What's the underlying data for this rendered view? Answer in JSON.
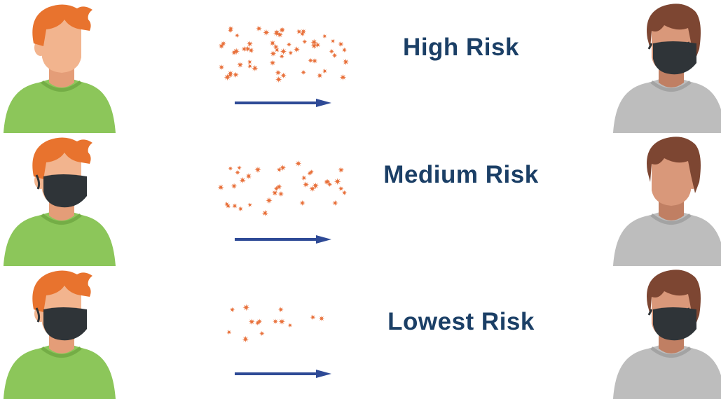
{
  "colors": {
    "risk_text": "#1b3f66",
    "arrow": "#2e4a96",
    "droplet": "#e8703a",
    "source_shirt": "#8cc65a",
    "source_hair": "#e8732e",
    "receiver_shirt": "#bdbdbd",
    "receiver_hair": "#7d4632",
    "skin": "#f2b48e",
    "receiver_skin": "#d9987a",
    "mask": "#2f3438"
  },
  "rows": [
    {
      "label": "High Risk",
      "source_mask": false,
      "receiver_mask": true,
      "droplet_level": "high"
    },
    {
      "label": "Medium Risk",
      "source_mask": true,
      "receiver_mask": false,
      "droplet_level": "medium"
    },
    {
      "label": "Lowest Risk",
      "source_mask": true,
      "receiver_mask": true,
      "droplet_level": "low"
    }
  ]
}
